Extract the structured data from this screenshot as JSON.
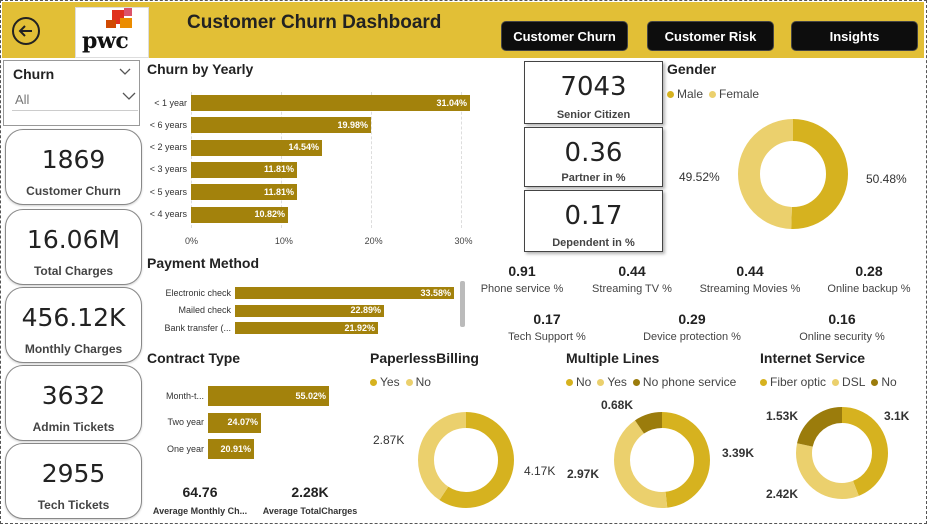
{
  "header": {
    "title": "Customer Churn Dashboard",
    "logo_text": "pwc",
    "nav": [
      "Customer Churn",
      "Customer Risk",
      "Insights"
    ]
  },
  "slicer": {
    "label": "Churn",
    "value": "All"
  },
  "kpis": [
    {
      "value": "1869",
      "label": "Customer Churn"
    },
    {
      "value": "16.06M",
      "label": "Total Charges"
    },
    {
      "value": "456.12K",
      "label": "Monthly Charges"
    },
    {
      "value": "3632",
      "label": "Admin Tickets"
    },
    {
      "value": "2955",
      "label": "Tech Tickets"
    }
  ],
  "mid_kpis": [
    {
      "value": "7043",
      "label": "Senior Citizen"
    },
    {
      "value": "0.36",
      "label": "Partner in %"
    },
    {
      "value": "0.17",
      "label": "Dependent in %"
    }
  ],
  "metrics": [
    {
      "value": "0.91",
      "label": "Phone service %"
    },
    {
      "value": "0.44",
      "label": "Streaming TV %"
    },
    {
      "value": "0.44",
      "label": "Streaming Movies %"
    },
    {
      "value": "0.28",
      "label": "Online backup %"
    },
    {
      "value": "0.17",
      "label": "Tech Support %"
    },
    {
      "value": "0.29",
      "label": "Device protection %"
    },
    {
      "value": "0.16",
      "label": "Online security %"
    }
  ],
  "averages": [
    {
      "value": "64.76",
      "label": "Average Monthly Ch..."
    },
    {
      "value": "2.28K",
      "label": "Average TotalCharges"
    }
  ],
  "colors": {
    "header": "#e2bf36",
    "bar": "#a3820c",
    "gold": "#d6b21f",
    "light": "#ebd06d",
    "dark": "#9b7c0c",
    "nav_bg": "#0d0d0d"
  },
  "chart_data": [
    {
      "type": "bar",
      "title": "Churn by Yearly",
      "categories": [
        "< 1 year",
        "< 6 years",
        "< 2 years",
        "< 3 years",
        "< 5 years",
        "< 4 years"
      ],
      "values": [
        31.04,
        19.98,
        14.54,
        11.81,
        11.81,
        10.82
      ],
      "value_labels": [
        "31.04%",
        "19.98%",
        "14.54%",
        "11.81%",
        "11.81%",
        "10.82%"
      ],
      "xticks": [
        "0%",
        "10%",
        "20%",
        "30%"
      ],
      "xlim": [
        0,
        31.5
      ]
    },
    {
      "type": "bar",
      "title": "Payment Method",
      "categories": [
        "Electronic check",
        "Mailed check",
        "Bank transfer (..."
      ],
      "values": [
        33.58,
        22.89,
        21.92
      ],
      "value_labels": [
        "33.58%",
        "22.89%",
        "21.92%"
      ],
      "xlim": [
        0,
        34
      ]
    },
    {
      "type": "bar",
      "title": "Contract Type",
      "categories": [
        "Month-t...",
        "Two year",
        "One year"
      ],
      "values": [
        55.02,
        24.07,
        20.91
      ],
      "value_labels": [
        "55.02%",
        "24.07%",
        "20.91%"
      ],
      "xlim": [
        0,
        55.5
      ]
    },
    {
      "type": "pie",
      "title": "Gender",
      "labels": [
        "Male",
        "Female"
      ],
      "values": [
        50.48,
        49.52
      ],
      "value_labels": [
        "50.48%",
        "49.52%"
      ]
    },
    {
      "type": "pie",
      "title": "PaperlessBilling",
      "labels": [
        "Yes",
        "No"
      ],
      "values": [
        4.17,
        2.87
      ],
      "value_labels": [
        "4.17K",
        "2.87K"
      ]
    },
    {
      "type": "pie",
      "title": "Multiple Lines",
      "labels": [
        "No",
        "Yes",
        "No phone service"
      ],
      "values": [
        3.39,
        2.97,
        0.68
      ],
      "value_labels": [
        "3.39K",
        "2.97K",
        "0.68K"
      ]
    },
    {
      "type": "pie",
      "title": "Internet Service",
      "labels": [
        "Fiber optic",
        "DSL",
        "No"
      ],
      "values": [
        3.1,
        2.42,
        1.53
      ],
      "value_labels": [
        "3.1K",
        "2.42K",
        "1.53K"
      ]
    }
  ]
}
